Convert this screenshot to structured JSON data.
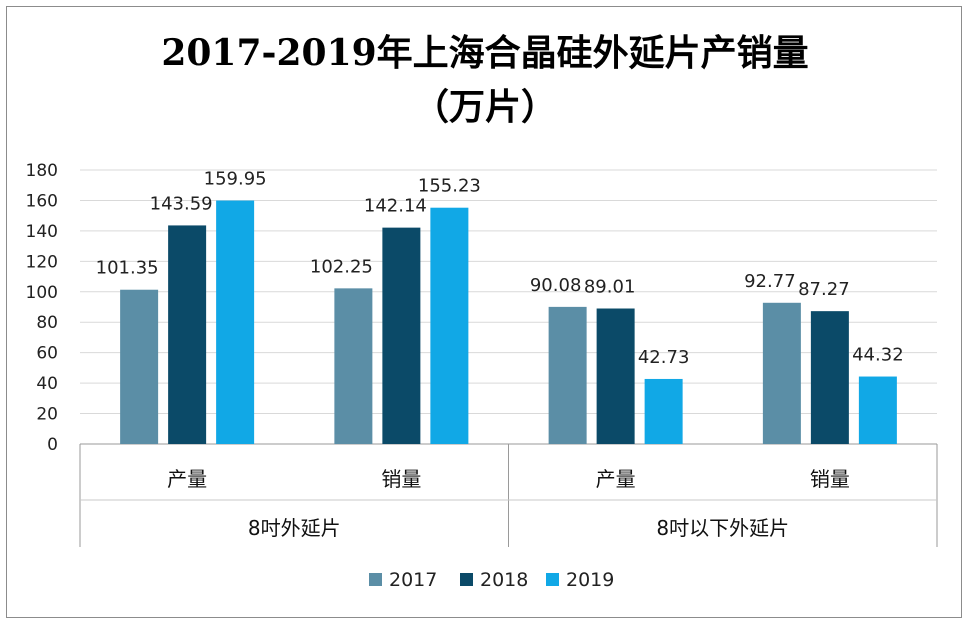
{
  "chart_data": {
    "type": "bar",
    "title_line1": "2017-2019年上海合晶硅外延片产销量",
    "title_line2": "（万片）",
    "groups": [
      {
        "label": "8吋外延片",
        "categories": [
          "产量",
          "销量"
        ]
      },
      {
        "label": "8吋以下外延片",
        "categories": [
          "产量",
          "销量"
        ]
      }
    ],
    "categories": [
      "产量",
      "销量",
      "产量",
      "销量"
    ],
    "series": [
      {
        "name": "2017",
        "color": "#5b8ea6",
        "values": [
          101.35,
          102.25,
          90.08,
          92.77
        ]
      },
      {
        "name": "2018",
        "color": "#0b4a68",
        "values": [
          143.59,
          142.14,
          89.01,
          87.27
        ]
      },
      {
        "name": "2019",
        "color": "#11a8e6",
        "values": [
          159.95,
          155.23,
          42.73,
          44.32
        ]
      }
    ],
    "y_ticks": [
      0,
      20,
      40,
      60,
      80,
      100,
      120,
      140,
      160,
      180
    ],
    "ylim": [
      0,
      180
    ],
    "grid": true,
    "legend_position": "bottom"
  }
}
